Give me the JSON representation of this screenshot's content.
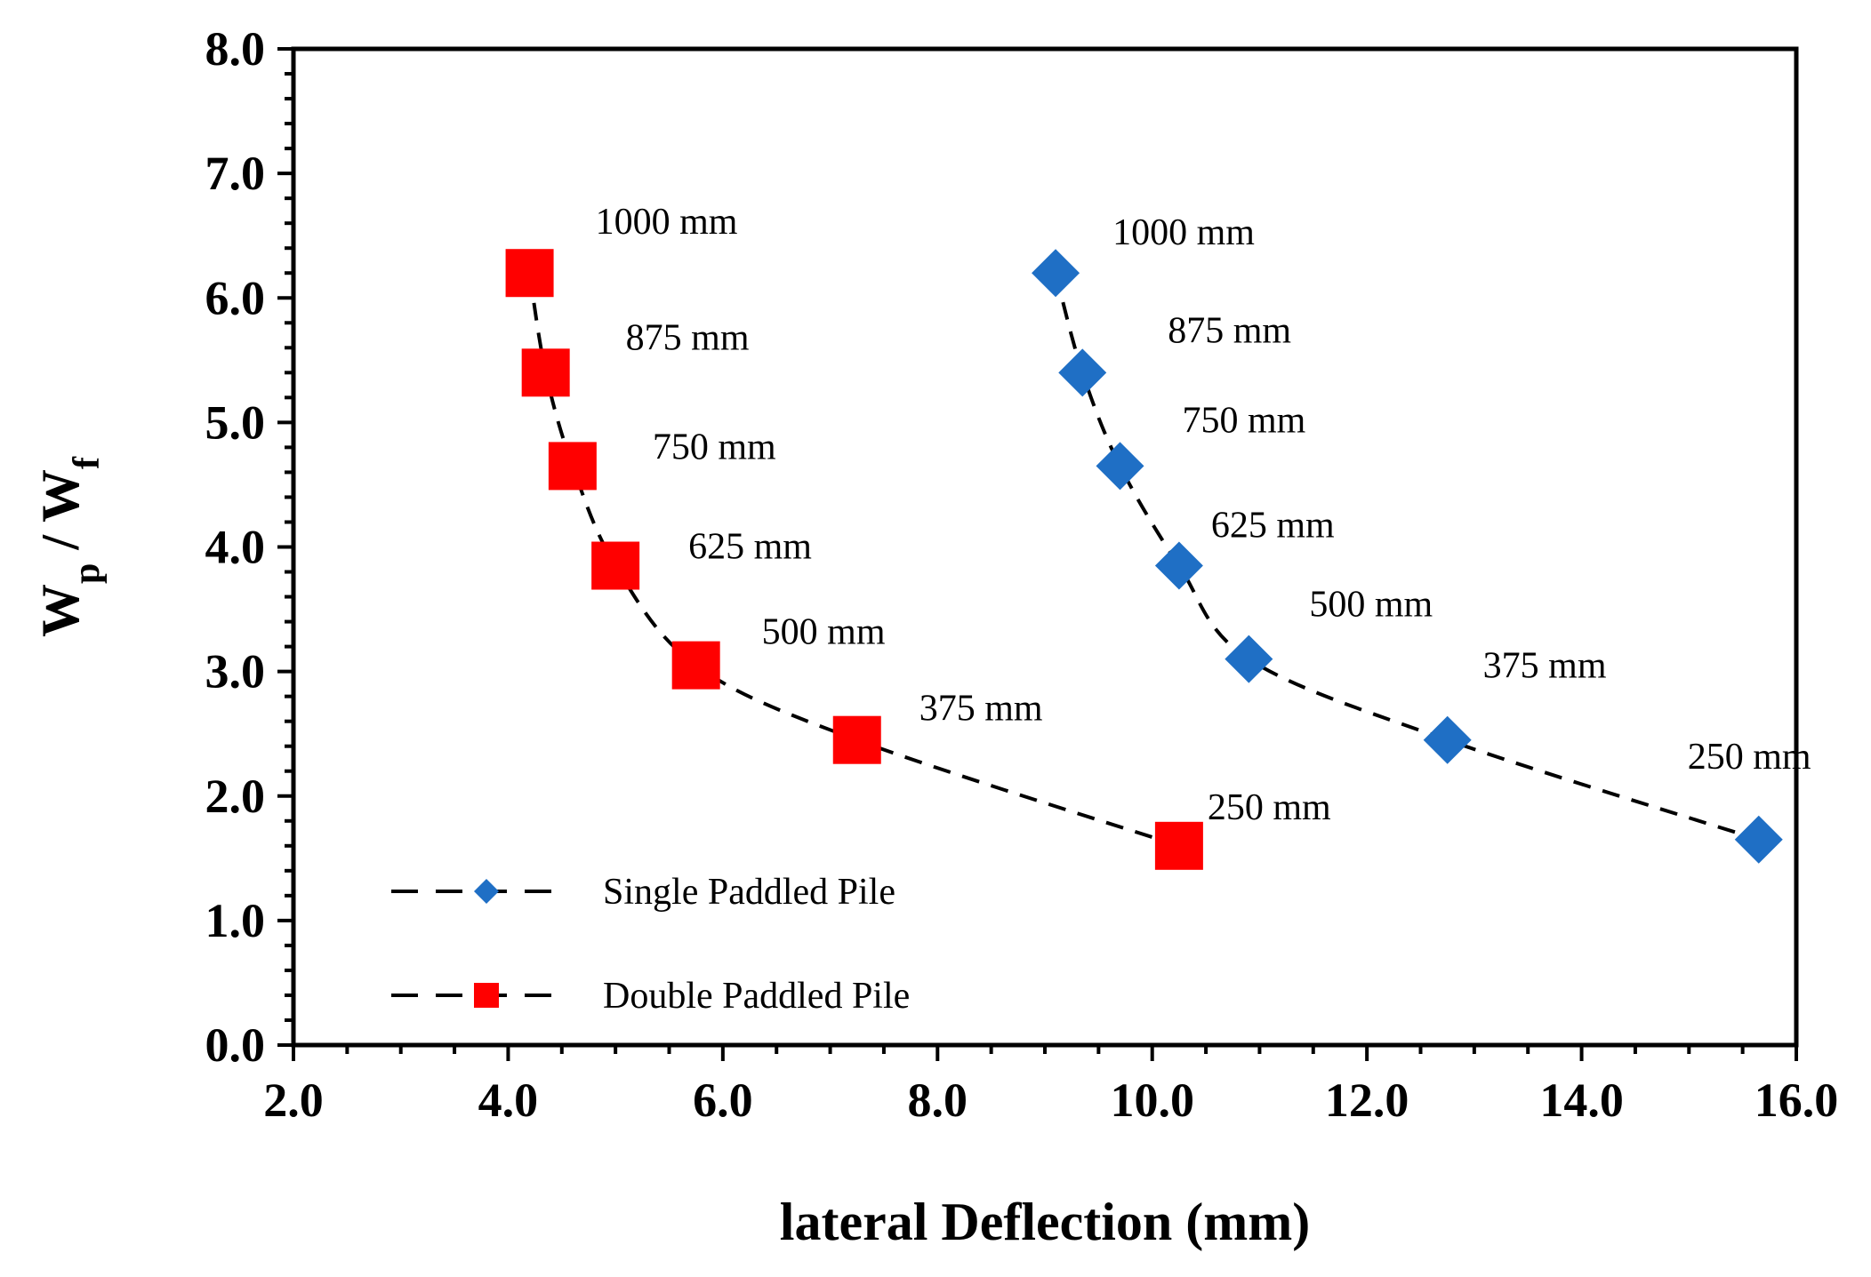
{
  "chart_data": {
    "type": "scatter",
    "title": "",
    "xlabel": "lateral Deflection (mm)",
    "ylabel": {
      "main": "W",
      "sub1": "p",
      "sep": " / W",
      "sub2": "f"
    },
    "xlim": [
      2.0,
      16.0
    ],
    "ylim": [
      0.0,
      8.0
    ],
    "x_ticks": [
      "2.0",
      "4.0",
      "6.0",
      "8.0",
      "10.0",
      "12.0",
      "14.0",
      "16.0"
    ],
    "y_ticks": [
      "0.0",
      "1.0",
      "2.0",
      "3.0",
      "4.0",
      "5.0",
      "6.0",
      "7.0",
      "8.0"
    ],
    "grid": false,
    "legend_position": "bottom-left",
    "series": [
      {
        "name": "Single Paddled Pile",
        "marker": "diamond",
        "color": "#1f6fc5",
        "line_style": "dashed",
        "points": [
          {
            "x": 9.1,
            "y": 6.2,
            "label": "1000 mm"
          },
          {
            "x": 9.35,
            "y": 5.4,
            "label": "875 mm"
          },
          {
            "x": 9.7,
            "y": 4.65,
            "label": "750 mm"
          },
          {
            "x": 10.25,
            "y": 3.85,
            "label": "625 mm"
          },
          {
            "x": 10.9,
            "y": 3.1,
            "label": "500 mm"
          },
          {
            "x": 12.75,
            "y": 2.45,
            "label": "375 mm"
          },
          {
            "x": 15.65,
            "y": 1.65,
            "label": "250 mm"
          }
        ]
      },
      {
        "name": "Double Paddled Pile",
        "marker": "square",
        "color": "#ff0000",
        "line_style": "dashed",
        "points": [
          {
            "x": 4.2,
            "y": 6.2,
            "label": "1000 mm"
          },
          {
            "x": 4.35,
            "y": 5.4,
            "label": "875 mm"
          },
          {
            "x": 4.6,
            "y": 4.65,
            "label": "750 mm"
          },
          {
            "x": 5.0,
            "y": 3.85,
            "label": "625 mm"
          },
          {
            "x": 5.75,
            "y": 3.05,
            "label": "500 mm"
          },
          {
            "x": 7.25,
            "y": 2.45,
            "label": "375 mm"
          },
          {
            "x": 10.25,
            "y": 1.6,
            "label": "250 mm"
          }
        ]
      }
    ]
  }
}
